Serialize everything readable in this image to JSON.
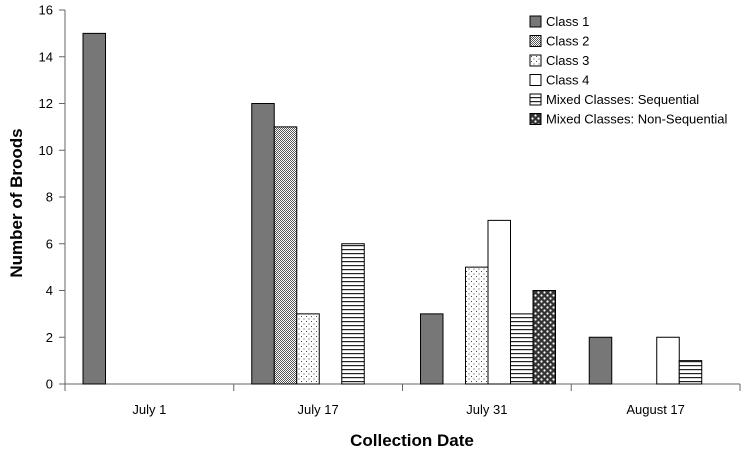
{
  "chart_data": {
    "type": "bar",
    "title": "",
    "xlabel": "Collection Date",
    "ylabel": "Number of Broods",
    "ylim": [
      0,
      16
    ],
    "yticks": [
      0,
      2,
      4,
      6,
      8,
      10,
      12,
      14,
      16
    ],
    "grid": false,
    "legend_position": "top-right",
    "categories": [
      "July 1",
      "July 17",
      "July 31",
      "August 17"
    ],
    "series": [
      {
        "name": "Class 1",
        "pattern": "solid-gray",
        "values": [
          15,
          12,
          3,
          2
        ]
      },
      {
        "name": "Class 2",
        "pattern": "checker",
        "values": [
          0,
          11,
          0,
          0
        ]
      },
      {
        "name": "Class 3",
        "pattern": "dots",
        "values": [
          0,
          3,
          5,
          0
        ]
      },
      {
        "name": "Class 4",
        "pattern": "white",
        "values": [
          0,
          0,
          7,
          2
        ]
      },
      {
        "name": "Mixed Classes: Sequential",
        "pattern": "hlines",
        "values": [
          0,
          6,
          3,
          1
        ]
      },
      {
        "name": "Mixed Classes: Non-Sequential",
        "pattern": "stars",
        "values": [
          0,
          0,
          4,
          0
        ]
      }
    ]
  }
}
